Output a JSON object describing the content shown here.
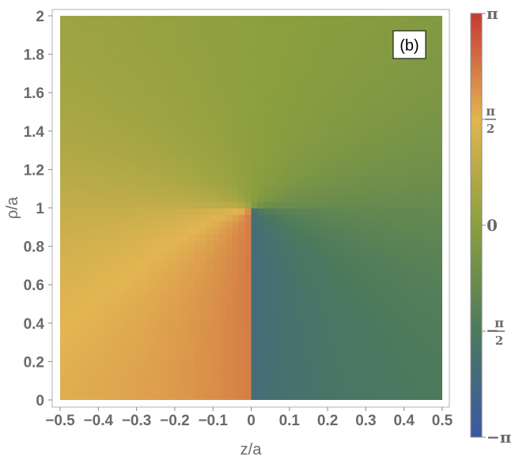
{
  "chart_data": {
    "type": "heatmap",
    "title": "",
    "panel_label": "(b)",
    "xlabel": "z/a",
    "ylabel": "ρ/a",
    "xlim": [
      -0.5,
      0.5
    ],
    "ylim": [
      0,
      2
    ],
    "x_ticks": [
      -0.5,
      -0.4,
      -0.3,
      -0.2,
      -0.1,
      0,
      0.1,
      0.2,
      0.3,
      0.4,
      0.5
    ],
    "x_tick_labels": [
      "−0.5",
      "−0.4",
      "−0.3",
      "−0.2",
      "−0.1",
      "0",
      "0.1",
      "0.2",
      "0.3",
      "0.4",
      "0.5"
    ],
    "y_ticks": [
      0,
      0.2,
      0.4,
      0.6,
      0.8,
      1,
      1.2,
      1.4,
      1.6,
      1.8,
      2
    ],
    "y_tick_labels": [
      "0",
      "0.2",
      "0.4",
      "0.6",
      "0.8",
      "1",
      "1.2",
      "1.4",
      "1.6",
      "1.8",
      "2"
    ],
    "singular_point": {
      "z": 0,
      "rho": 1
    },
    "branch_cut": {
      "z": 0,
      "rho_range": [
        0,
        1
      ]
    },
    "colorbar": {
      "range": [
        -3.14159,
        3.14159
      ],
      "ticks": [
        {
          "value": 3.14159,
          "label": "π"
        },
        {
          "value": 1.5708,
          "label_num": "π",
          "label_den": "2"
        },
        {
          "value": 0,
          "label": "0"
        },
        {
          "value": -1.5708,
          "label_sign": "−",
          "label_num": "π",
          "label_den": "2"
        },
        {
          "value": -3.14159,
          "label": "−π"
        }
      ],
      "colors": [
        "#3a57a7",
        "#4c7a5c",
        "#8b9f3e",
        "#e2b552",
        "#c53a35"
      ]
    },
    "grid": false,
    "legend": "colorbar-right"
  }
}
